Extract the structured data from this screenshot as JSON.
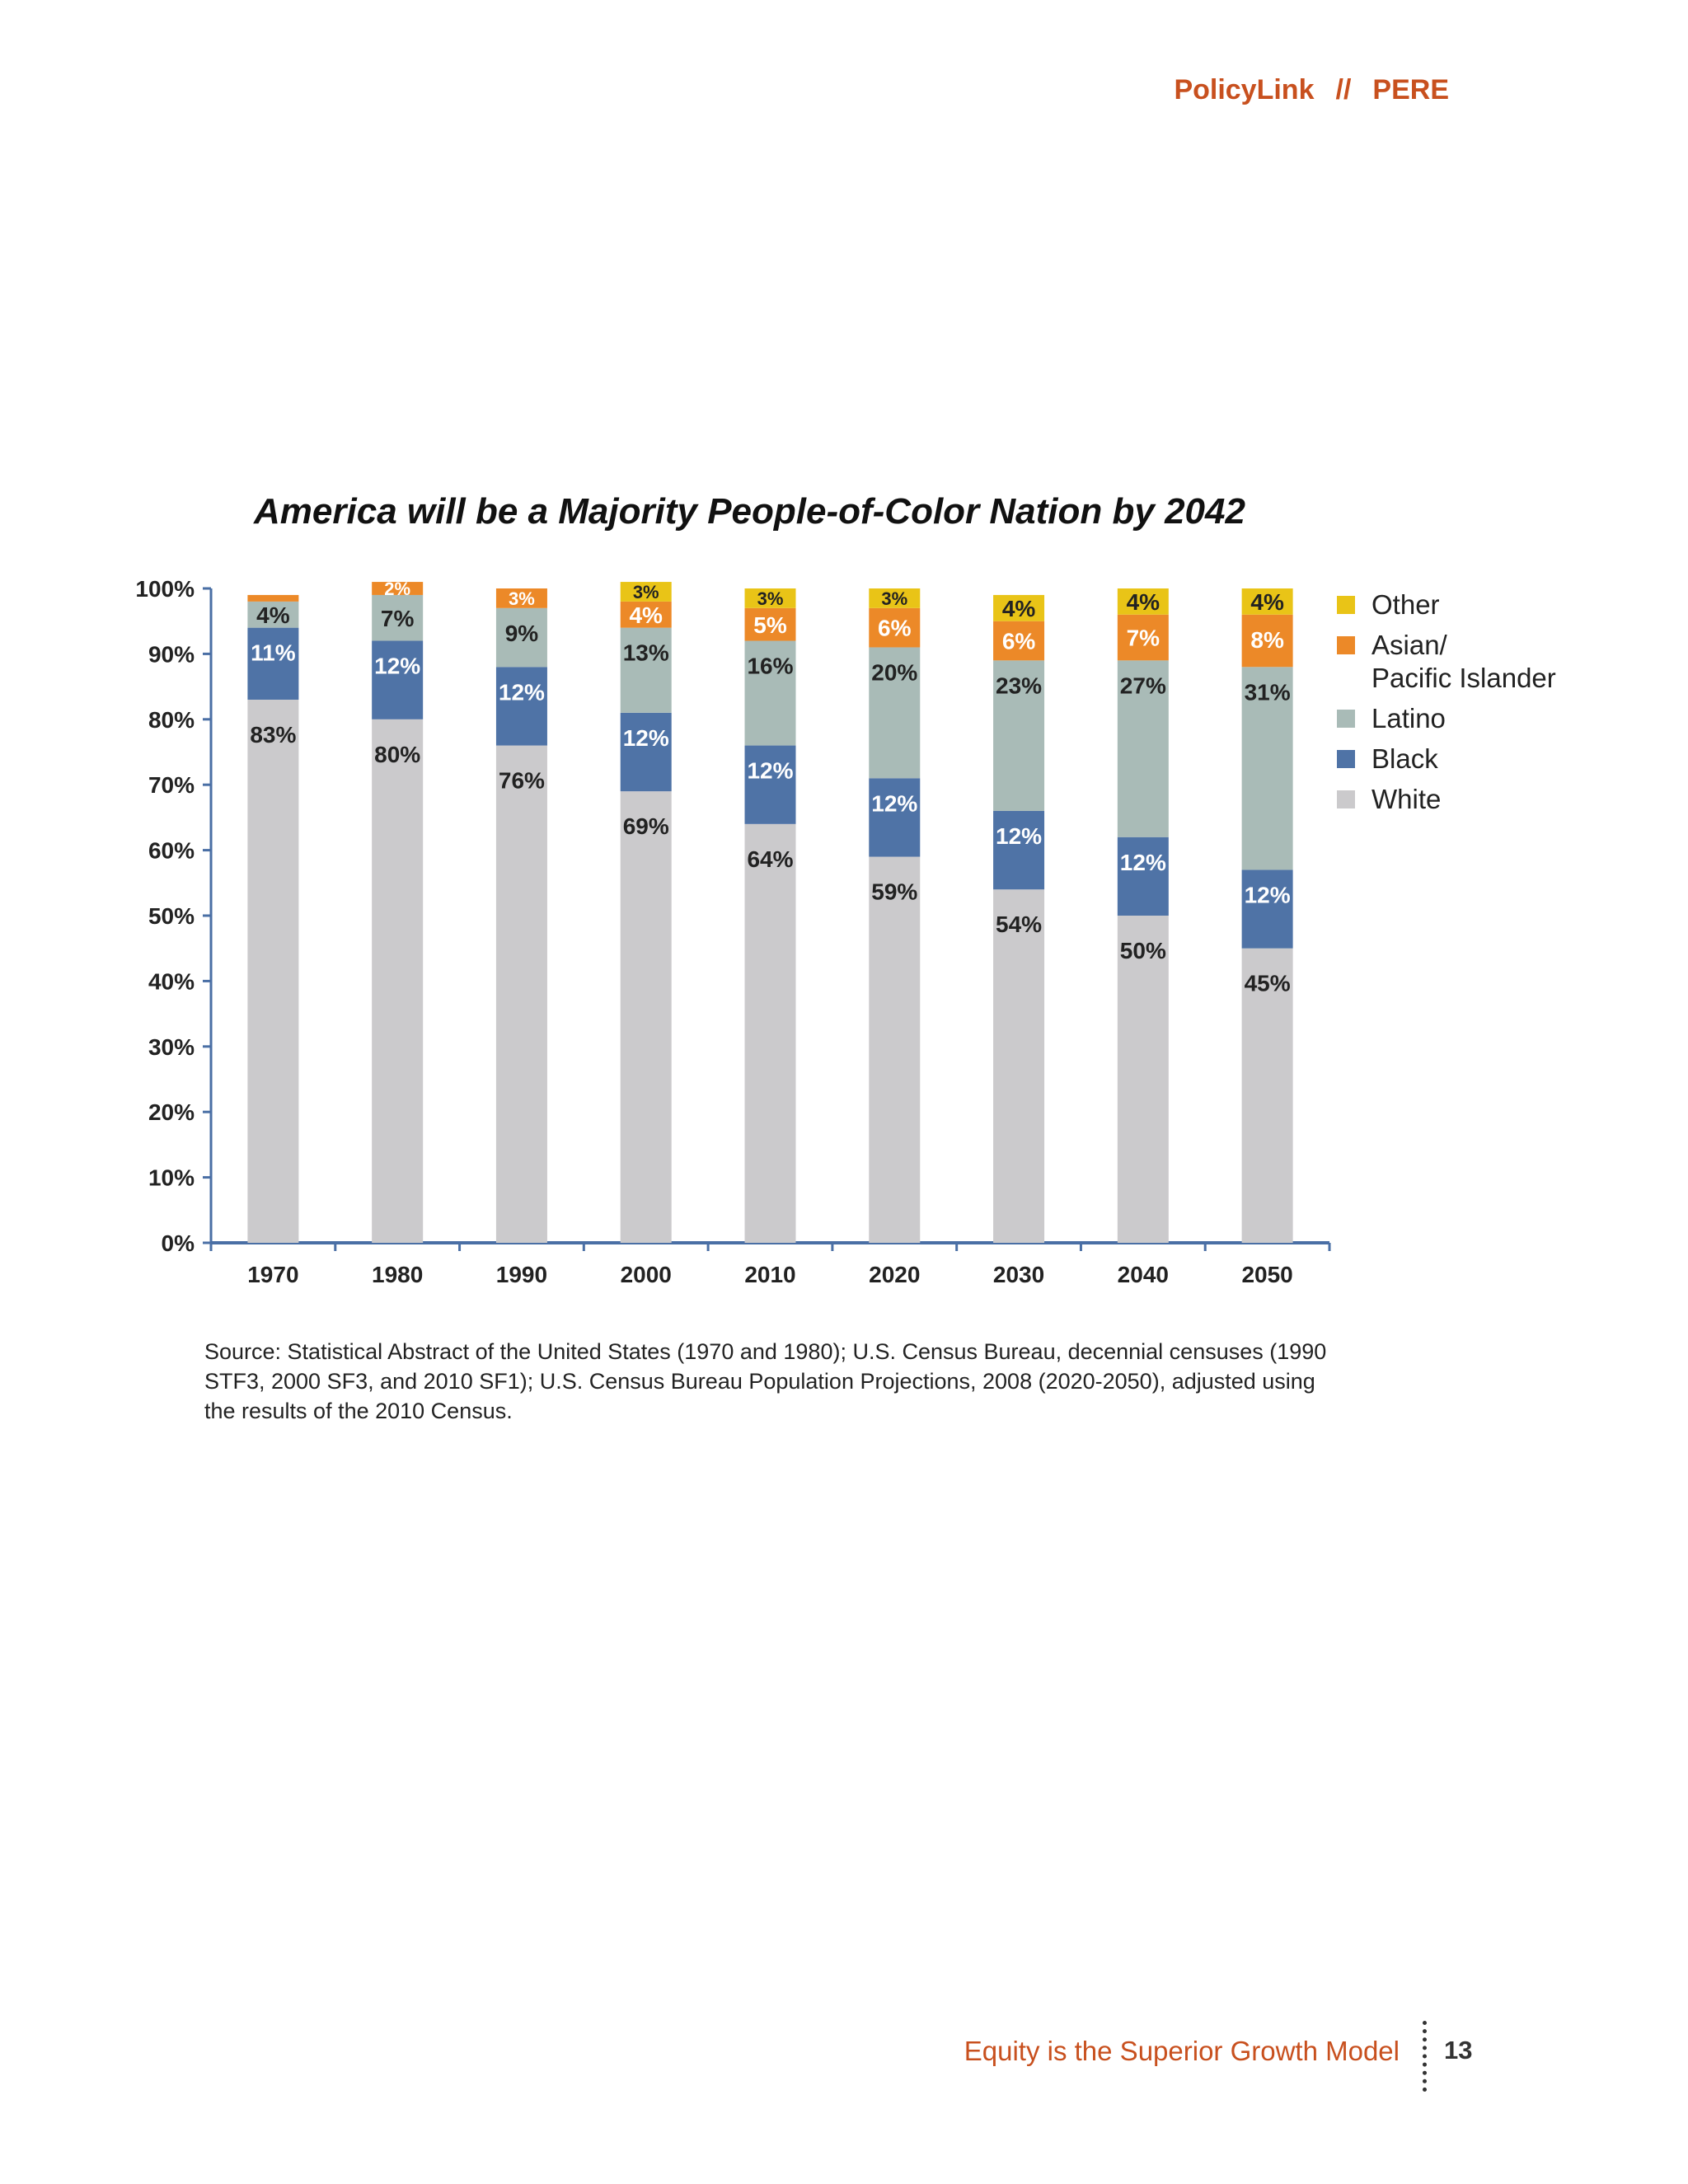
{
  "header": {
    "org1": "PolicyLink",
    "separator": "//",
    "org2": "PERE"
  },
  "chart_data": {
    "type": "bar",
    "stacked": true,
    "title": "America will be a Majority People-of-Color Nation by 2042",
    "categories": [
      "1970",
      "1980",
      "1990",
      "2000",
      "2010",
      "2020",
      "2030",
      "2040",
      "2050"
    ],
    "series": [
      {
        "name": "White",
        "color": "#cbcacc",
        "values": [
          83,
          80,
          76,
          69,
          64,
          59,
          54,
          50,
          45
        ],
        "labels": [
          "83%",
          "80%",
          "76%",
          "69%",
          "64%",
          "59%",
          "54%",
          "50%",
          "45%"
        ]
      },
      {
        "name": "Black",
        "color": "#4f73a6",
        "values": [
          11,
          12,
          12,
          12,
          12,
          12,
          12,
          12,
          12
        ],
        "labels": [
          "11%",
          "12%",
          "12%",
          "12%",
          "12%",
          "12%",
          "12%",
          "12%",
          "12%"
        ]
      },
      {
        "name": "Latino",
        "color": "#a9bbb7",
        "values": [
          4,
          7,
          9,
          13,
          16,
          20,
          23,
          27,
          31
        ],
        "labels": [
          "4%",
          "7%",
          "9%",
          "13%",
          "16%",
          "20%",
          "23%",
          "27%",
          "31%"
        ]
      },
      {
        "name": "Asian/ Pacific Islander",
        "color": "#ec8928",
        "values": [
          1,
          2,
          3,
          4,
          5,
          6,
          6,
          7,
          8
        ],
        "labels": [
          "",
          "2%",
          "3%",
          "4%",
          "5%",
          "6%",
          "6%",
          "7%",
          "8%"
        ]
      },
      {
        "name": "Other",
        "color": "#e9c417",
        "values": [
          0,
          0,
          0,
          3,
          3,
          3,
          4,
          4,
          4
        ],
        "labels": [
          "",
          "",
          "",
          "3%",
          "3%",
          "3%",
          "4%",
          "4%",
          "4%"
        ]
      }
    ],
    "ylim": [
      0,
      100
    ],
    "yticks": [
      "0%",
      "10%",
      "20%",
      "30%",
      "40%",
      "50%",
      "60%",
      "70%",
      "80%",
      "90%",
      "100%"
    ],
    "legend": {
      "placement": "right",
      "entries": [
        {
          "lines": [
            "Other"
          ],
          "color": "#e9c417"
        },
        {
          "lines": [
            "Asian/",
            "Pacific Islander"
          ],
          "color": "#ec8928"
        },
        {
          "lines": [
            "Latino"
          ],
          "color": "#a9bbb7"
        },
        {
          "lines": [
            "Black"
          ],
          "color": "#4f73a6"
        },
        {
          "lines": [
            "White"
          ],
          "color": "#cbcacc"
        }
      ]
    },
    "grid": false
  },
  "source": "Source: Statistical Abstract of the United States (1970 and 1980); U.S. Census Bureau, decennial censuses (1990 STF3, 2000 SF3, and 2010 SF1); U.S. Census Bureau Population Projections, 2008 (2020-2050), adjusted using the results of the 2010 Census.",
  "footer": {
    "text": "Equity is the Superior Growth Model",
    "page_number": "13"
  }
}
